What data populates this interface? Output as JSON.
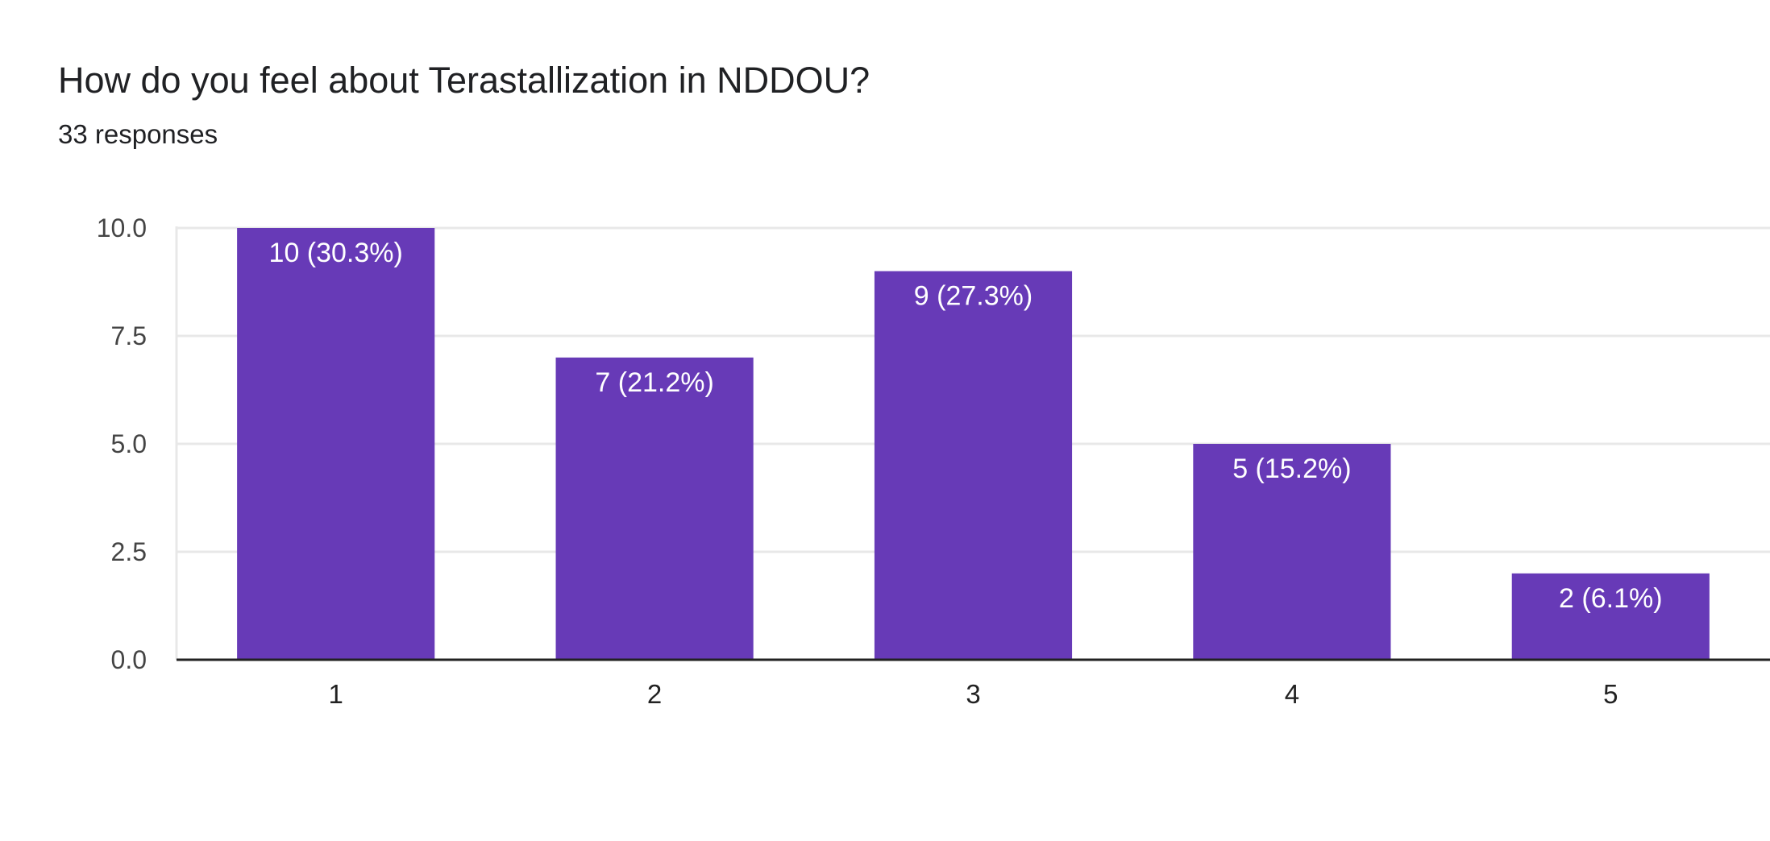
{
  "question": {
    "title": "How do you feel about Terastallization in NDDOU?",
    "responses": "33 responses"
  },
  "colors": {
    "bar": "#673ab7",
    "grid": "#e8e8e8",
    "axis": "#222222"
  },
  "chart_data": {
    "type": "bar",
    "title": "How do you feel about Terastallization in NDDOU?",
    "subtitle": "33 responses",
    "xlabel": "",
    "ylabel": "",
    "categories": [
      "1",
      "2",
      "3",
      "4",
      "5"
    ],
    "values": [
      10,
      7,
      9,
      5,
      2
    ],
    "data_labels": [
      "10 (30.3%)",
      "7 (21.2%)",
      "9 (27.3%)",
      "5 (15.2%)",
      "2 (6.1%)"
    ],
    "ylim": [
      0,
      10
    ],
    "yticks": [
      0,
      2.5,
      5,
      7.5,
      10
    ],
    "ytick_labels": [
      "0.0",
      "2.5",
      "5.0",
      "7.5",
      "10.0"
    ],
    "grid": true,
    "legend": "none"
  }
}
